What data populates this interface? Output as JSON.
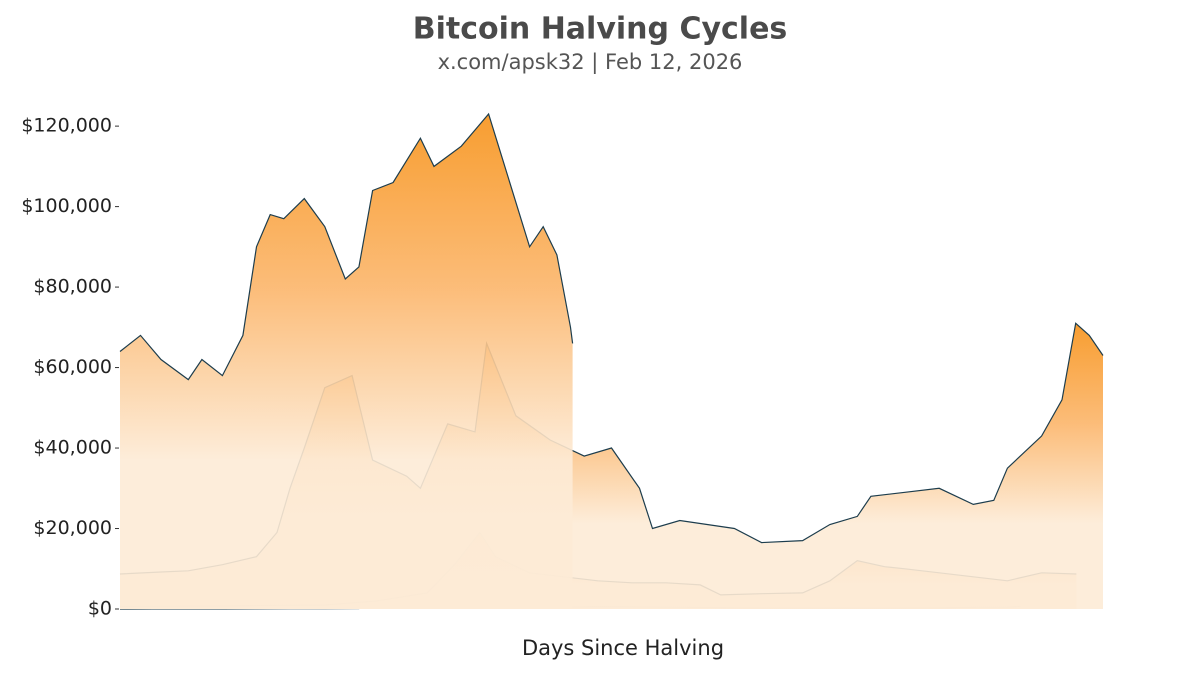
{
  "chart_data": {
    "type": "area",
    "title": "Bitcoin Halving Cycles",
    "subtitle": "x.com/apsk32 | Feb 12, 2026",
    "x_label": "Days Since Halving",
    "xlim": [
      0,
      1440
    ],
    "ylim": [
      0,
      125000
    ],
    "yticks": [
      {
        "value": 0,
        "label": "$0"
      },
      {
        "value": 20000,
        "label": "$20,000"
      },
      {
        "value": 40000,
        "label": "$40,000"
      },
      {
        "value": 60000,
        "label": "$60,000"
      },
      {
        "value": 80000,
        "label": "$80,000"
      },
      {
        "value": 100000,
        "label": "$100,000"
      },
      {
        "value": 120000,
        "label": "$120,000"
      }
    ],
    "line_color": "#1d3d4d",
    "series": [
      {
        "color": "#f7931a",
        "x": [
          0,
          50,
          100,
          150,
          200,
          250,
          300,
          350,
          370,
          400,
          450,
          500,
          550,
          600,
          650,
          700,
          750,
          800,
          850,
          900,
          950,
          1000,
          1050,
          1100,
          1150,
          1200,
          1250,
          1300,
          1319
        ],
        "values": [
          12,
          13,
          14,
          20,
          50,
          90,
          100,
          120,
          1100,
          800,
          900,
          700,
          600,
          500,
          450,
          600,
          550,
          450,
          380,
          300,
          250,
          230,
          240,
          230,
          250,
          270,
          410,
          450,
          650
        ]
      },
      {
        "color": "#f7931a",
        "x": [
          0,
          75,
          150,
          225,
          300,
          375,
          450,
          490,
          527,
          550,
          600,
          650,
          700,
          750,
          800,
          850,
          880,
          940,
          1000,
          1040,
          1080,
          1120,
          1150,
          1200,
          1250,
          1300,
          1350,
          1401
        ],
        "values": [
          650,
          700,
          750,
          900,
          1000,
          2000,
          4000,
          11000,
          19000,
          13000,
          9000,
          8000,
          7000,
          6500,
          6500,
          6000,
          3500,
          3800,
          4000,
          7000,
          12000,
          10500,
          10000,
          9000,
          8000,
          7000,
          9000,
          8700
        ]
      },
      {
        "color": "#f7931a",
        "x": [
          0,
          60,
          100,
          150,
          200,
          230,
          249,
          270,
          300,
          340,
          370,
          420,
          440,
          480,
          520,
          537,
          580,
          630,
          680,
          720,
          761,
          780,
          820,
          900,
          940,
          1000,
          1040,
          1080,
          1100,
          1150,
          1200,
          1250,
          1280,
          1300,
          1350,
          1380,
          1400,
          1420,
          1440
        ],
        "values": [
          8700,
          9200,
          9500,
          11000,
          13000,
          19000,
          30000,
          40000,
          55000,
          58000,
          37000,
          33000,
          30000,
          46000,
          44000,
          66000,
          48000,
          42000,
          38000,
          40000,
          30000,
          20000,
          22000,
          20000,
          16500,
          17000,
          21000,
          23000,
          28000,
          29000,
          30000,
          26000,
          27000,
          35000,
          43000,
          52000,
          71000,
          68000,
          63000
        ]
      },
      {
        "color": "#f7931a",
        "x": [
          0,
          30,
          60,
          100,
          120,
          150,
          180,
          200,
          220,
          240,
          270,
          300,
          330,
          350,
          370,
          400,
          440,
          460,
          500,
          540,
          560,
          600,
          620,
          640,
          660,
          663
        ],
        "values": [
          64000,
          68000,
          62000,
          57000,
          62000,
          58000,
          68000,
          90000,
          98000,
          97000,
          102000,
          95000,
          82000,
          85000,
          104000,
          106000,
          117000,
          110000,
          115000,
          123000,
          112000,
          90000,
          95000,
          88000,
          70000,
          66000
        ]
      }
    ]
  }
}
